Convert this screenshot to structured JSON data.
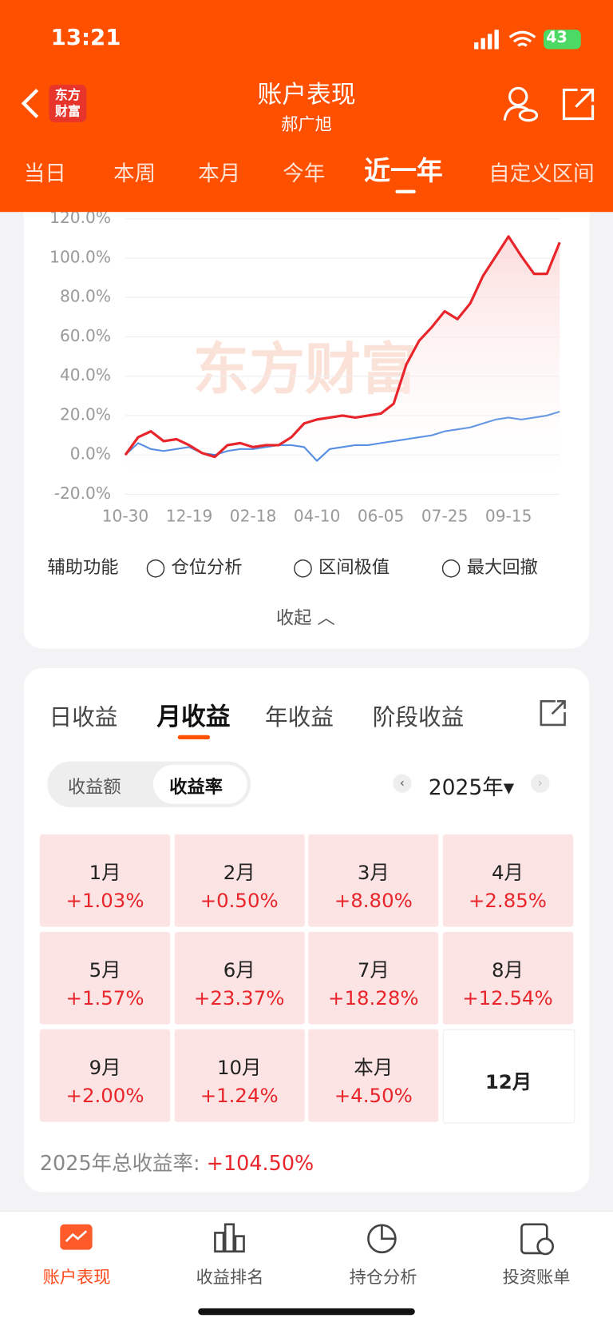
{
  "status": {
    "time": "13:21",
    "battery": "43"
  },
  "header": {
    "logo": "东方\n财富",
    "title": "账户表现",
    "subtitle": "郝广旭",
    "tabs": [
      "当日",
      "本周",
      "本月",
      "今年",
      "近一年",
      "自定义区间"
    ]
  },
  "chart_data": {
    "type": "line",
    "watermark": "东方财富",
    "categories": [
      "10-30",
      null,
      null,
      null,
      null,
      "12-19",
      null,
      null,
      null,
      null,
      "02-18",
      null,
      null,
      null,
      null,
      "04-10",
      null,
      null,
      null,
      null,
      "06-05",
      null,
      null,
      null,
      null,
      "07-25",
      null,
      null,
      null,
      null,
      "09-15",
      null,
      null,
      null,
      null
    ],
    "series": [
      {
        "color": "#e8252b",
        "values": [
          0,
          9,
          12,
          7,
          8,
          5,
          1,
          -1,
          5,
          6,
          4,
          5,
          5,
          9,
          16,
          18,
          19,
          20,
          19,
          20,
          21,
          26,
          46,
          58,
          65,
          73,
          69,
          77,
          91,
          101,
          111,
          101,
          92,
          92,
          108
        ]
      },
      {
        "color": "#3a7de0",
        "values": [
          0,
          6,
          3,
          2,
          3,
          4,
          1,
          0,
          2,
          3,
          3,
          4,
          5,
          5,
          4,
          -3,
          3,
          4,
          5,
          5,
          6,
          7,
          8,
          9,
          10,
          12,
          13,
          14,
          16,
          18,
          19,
          18,
          19,
          20,
          22
        ]
      }
    ],
    "ylim": [
      -20,
      120
    ],
    "yticks": [
      {
        "value": -20,
        "label": "-20.0%"
      },
      {
        "value": 0,
        "label": "0.0%"
      },
      {
        "value": 20,
        "label": "20.0%"
      },
      {
        "value": 40,
        "label": "40.0%"
      },
      {
        "value": 60,
        "label": "60.0%"
      },
      {
        "value": 80,
        "label": "80.0%"
      },
      {
        "value": 100,
        "label": "100.0%"
      },
      {
        "value": 120,
        "label": "120.0%"
      }
    ],
    "grid": true
  },
  "aux": {
    "label": "辅助功能",
    "options": [
      "仓位分析",
      "区间极值",
      "最大回撤"
    ],
    "collapse": "收起"
  },
  "returns": {
    "tabs": [
      "日收益",
      "月收益",
      "年收益",
      "阶段收益"
    ],
    "toggle": [
      "收益额",
      "收益率"
    ],
    "year": "2025年",
    "cells": [
      [
        "1月",
        "+1.03%"
      ],
      [
        "2月",
        "+0.50%"
      ],
      [
        "3月",
        "+8.80%"
      ],
      [
        "4月",
        "+2.85%"
      ],
      [
        "5月",
        "+1.57%"
      ],
      [
        "6月",
        "+23.37%"
      ],
      [
        "7月",
        "+18.28%"
      ],
      [
        "8月",
        "+12.54%"
      ],
      [
        "9月",
        "+2.00%"
      ],
      [
        "10月",
        "+1.24%"
      ],
      [
        "本月",
        "+4.50%"
      ],
      [
        "12月"
      ]
    ],
    "total_label": "2025年总收益率:",
    "total_value": "+104.50%"
  },
  "nav": [
    "账户表现",
    "收益排名",
    "持仓分析",
    "投资账单"
  ]
}
